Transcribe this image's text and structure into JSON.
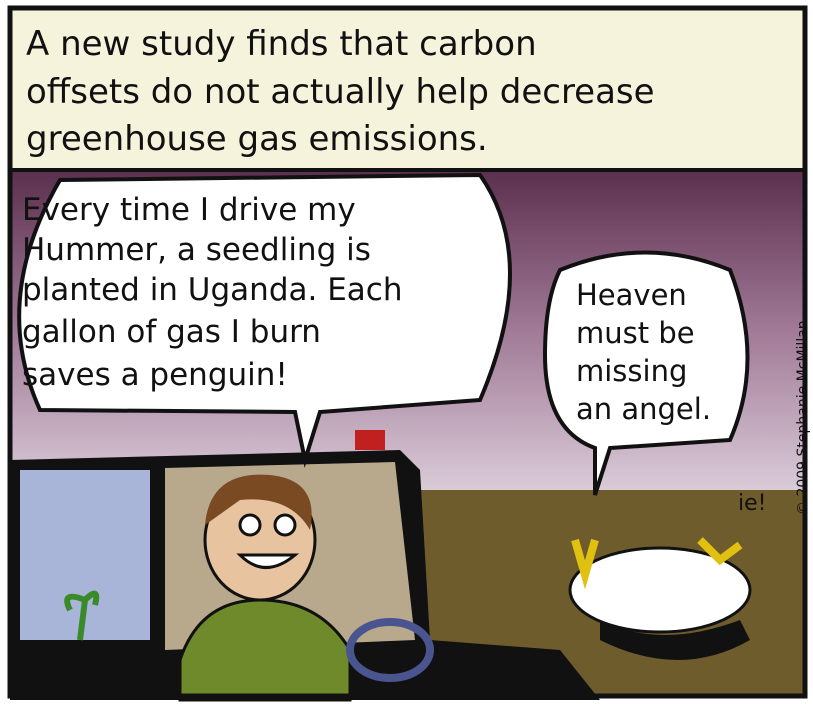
{
  "caption": {
    "lines": [
      "A new study finds that carbon",
      "offsets do not actually help decrease",
      "greenhouse gas emissions."
    ]
  },
  "bubbles": [
    {
      "lines": [
        "Every time I drive my",
        "Hummer, a seedling is",
        "planted in Uganda. Each",
        "gallon of gas I burn",
        "saves a penguin!"
      ]
    },
    {
      "lines": [
        "Heaven",
        "must be",
        "missing",
        "an angel."
      ]
    }
  ],
  "signature": "ie!",
  "copyright": "© 2009 Stephanie McMillan."
}
